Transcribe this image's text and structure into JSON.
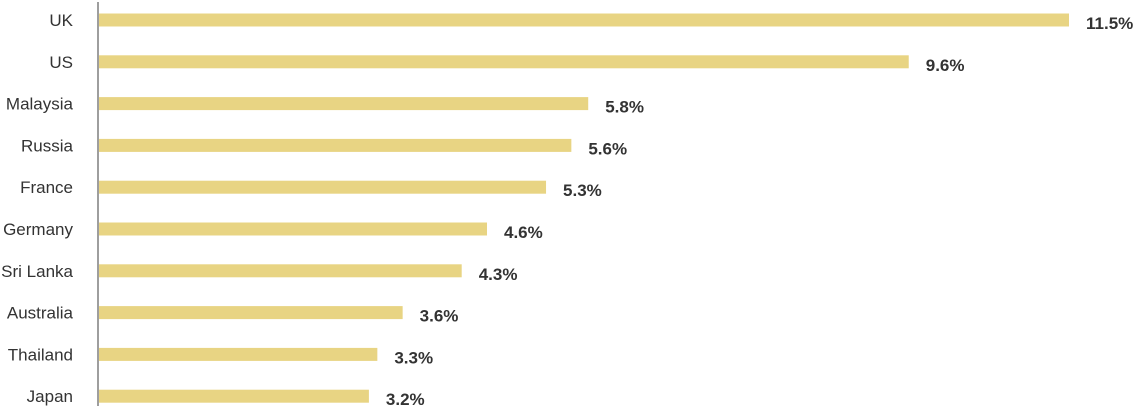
{
  "chart_data": {
    "type": "bar",
    "orientation": "horizontal",
    "title": "",
    "xlabel": "",
    "ylabel": "",
    "categories": [
      "UK",
      "US",
      "Malaysia",
      "Russia",
      "France",
      "Germany",
      "Sri Lanka",
      "Australia",
      "Thailand",
      "Japan"
    ],
    "values": [
      11.5,
      9.6,
      5.8,
      5.6,
      5.3,
      4.6,
      4.3,
      3.6,
      3.3,
      3.2
    ],
    "value_labels": [
      "11.5%",
      "9.6%",
      "5.8%",
      "5.6%",
      "5.3%",
      "4.6%",
      "4.3%",
      "3.6%",
      "3.3%",
      "3.2%"
    ],
    "xlim": [
      0,
      11.5
    ],
    "grid": false,
    "legend": "none",
    "bar_color": "#e8d483",
    "axis_color": "#9e9e9e",
    "text_color": "#333333"
  }
}
